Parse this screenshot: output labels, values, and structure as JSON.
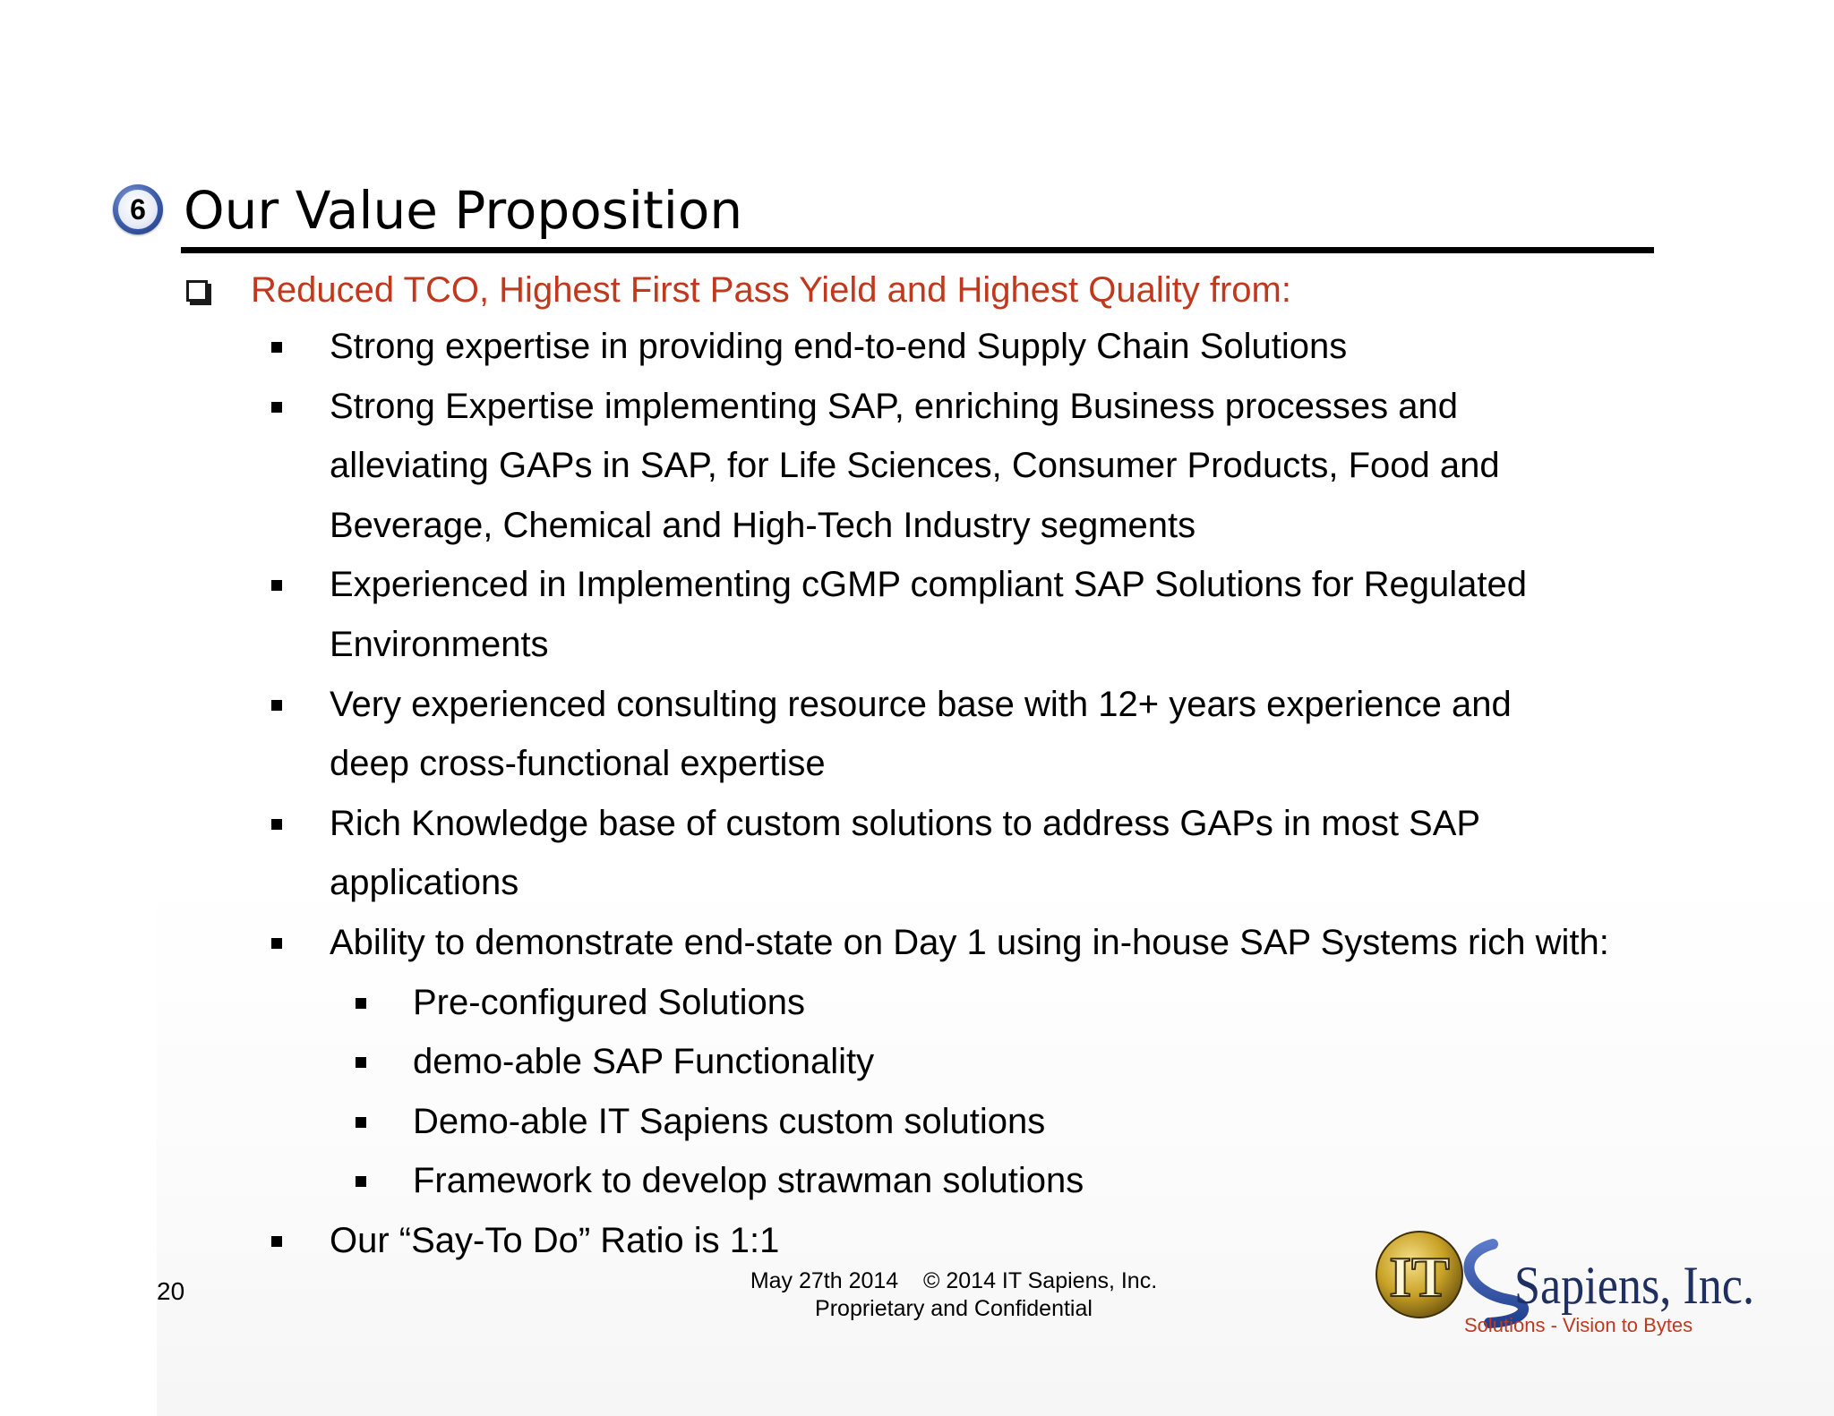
{
  "slide": {
    "section_number": "6",
    "title": "Our Value Proposition",
    "page_number": "20"
  },
  "lead": {
    "text": "Reduced TCO, Highest First Pass Yield and Highest Quality from:",
    "color": "#c0391d"
  },
  "bullets": [
    {
      "level": 1,
      "lines": [
        "Strong expertise in providing end-to-end Supply Chain Solutions"
      ]
    },
    {
      "level": 1,
      "lines": [
        "Strong Expertise implementing SAP, enriching Business processes and",
        "alleviating GAPs in SAP, for Life Sciences, Consumer Products, Food and",
        "Beverage, Chemical and High-Tech Industry segments"
      ]
    },
    {
      "level": 1,
      "lines": [
        "Experienced in Implementing cGMP compliant SAP Solutions for Regulated",
        "Environments"
      ]
    },
    {
      "level": 1,
      "lines": [
        "Very experienced consulting resource base with 12+ years experience and",
        "deep cross-functional expertise"
      ]
    },
    {
      "level": 1,
      "lines": [
        "Rich Knowledge base of custom solutions to address GAPs in most SAP",
        "applications"
      ]
    },
    {
      "level": 1,
      "lines": [
        "Ability to demonstrate end-state on Day 1 using in-house SAP Systems rich with:"
      ]
    },
    {
      "level": 2,
      "lines": [
        "Pre-configured Solutions"
      ]
    },
    {
      "level": 2,
      "lines": [
        "demo-able SAP Functionality"
      ]
    },
    {
      "level": 2,
      "lines": [
        "Demo-able IT Sapiens custom solutions"
      ]
    },
    {
      "level": 2,
      "lines": [
        "Framework to develop strawman solutions"
      ]
    },
    {
      "level": 1,
      "lines": [
        "Our “Say-To Do” Ratio is 1:1"
      ]
    }
  ],
  "footer": {
    "line1": "May 27th 2014    © 2014 IT Sapiens, Inc.",
    "line2": "Proprietary and Confidential"
  },
  "logo": {
    "mark": "IT",
    "name": "Sapiens, Inc.",
    "tagline": "Solutions - Vision to Bytes",
    "colors": {
      "gold": "#c9a227",
      "blue": "#1f3f8f",
      "tagline": "#c0391d"
    }
  },
  "icons": {
    "section_badge": "numbered-circle-icon",
    "lead_marker": "checkbox-icon",
    "bullet_marker": "square-bullet-icon"
  }
}
